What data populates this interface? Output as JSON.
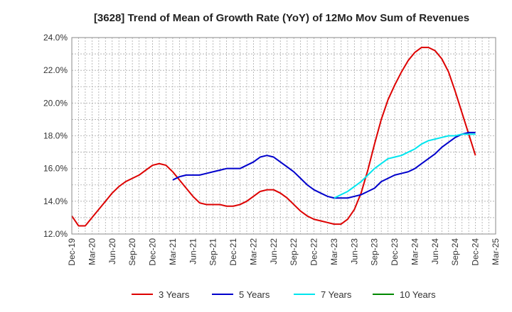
{
  "chart_data": {
    "type": "line",
    "title": "[3628]  Trend of Mean of Growth Rate (YoY) of 12Mo Mov Sum of Revenues",
    "xlabel": "",
    "ylabel": "",
    "ylim": [
      12.0,
      24.0
    ],
    "y_ticks": [
      "12.0%",
      "14.0%",
      "16.0%",
      "18.0%",
      "20.0%",
      "22.0%",
      "24.0%"
    ],
    "y_tick_values": [
      12,
      14,
      16,
      18,
      20,
      22,
      24
    ],
    "x_tick_labels": [
      "Dec-19",
      "Mar-20",
      "Jun-20",
      "Sep-20",
      "Dec-20",
      "Mar-21",
      "Jun-21",
      "Sep-21",
      "Dec-21",
      "Mar-22",
      "Jun-22",
      "Sep-22",
      "Dec-22",
      "Mar-23",
      "Jun-23",
      "Sep-23",
      "Dec-23",
      "Mar-24",
      "Jun-24",
      "Sep-24",
      "Dec-24",
      "Mar-25"
    ],
    "x_range_months": [
      0,
      63
    ],
    "grid": true,
    "legend_position": "bottom",
    "series": [
      {
        "name": "3 Years",
        "color": "#dd0000",
        "start_month": 0,
        "values": [
          13.1,
          12.5,
          12.5,
          13.0,
          13.5,
          14.0,
          14.5,
          14.9,
          15.2,
          15.4,
          15.6,
          15.9,
          16.2,
          16.3,
          16.2,
          15.8,
          15.3,
          14.8,
          14.3,
          13.9,
          13.8,
          13.8,
          13.8,
          13.7,
          13.7,
          13.8,
          14.0,
          14.3,
          14.6,
          14.7,
          14.7,
          14.5,
          14.2,
          13.8,
          13.4,
          13.1,
          12.9,
          12.8,
          12.7,
          12.6,
          12.6,
          12.9,
          13.5,
          14.5,
          15.9,
          17.5,
          19.0,
          20.2,
          21.1,
          21.9,
          22.6,
          23.1,
          23.4,
          23.4,
          23.2,
          22.7,
          21.9,
          20.7,
          19.4,
          18.1,
          16.8
        ]
      },
      {
        "name": "5 Years",
        "color": "#0000cc",
        "start_month": 15,
        "values": [
          15.3,
          15.5,
          15.6,
          15.6,
          15.6,
          15.7,
          15.8,
          15.9,
          16.0,
          16.0,
          16.0,
          16.2,
          16.4,
          16.7,
          16.8,
          16.7,
          16.4,
          16.1,
          15.8,
          15.4,
          15.0,
          14.7,
          14.5,
          14.3,
          14.2,
          14.2,
          14.2,
          14.3,
          14.4,
          14.6,
          14.8,
          15.2,
          15.4,
          15.6,
          15.7,
          15.8,
          16.0,
          16.3,
          16.6,
          16.9,
          17.3,
          17.6,
          17.9,
          18.1,
          18.2,
          18.2
        ]
      },
      {
        "name": "7 Years",
        "color": "#00e5ee",
        "start_month": 39,
        "values": [
          14.2,
          14.4,
          14.6,
          14.9,
          15.2,
          15.6,
          16.0,
          16.3,
          16.6,
          16.7,
          16.8,
          17.0,
          17.2,
          17.5,
          17.7,
          17.8,
          17.9,
          18.0,
          18.0,
          18.1,
          18.1,
          18.1
        ]
      },
      {
        "name": "10 Years",
        "color": "#008800",
        "start_month": 0,
        "values": []
      }
    ]
  }
}
